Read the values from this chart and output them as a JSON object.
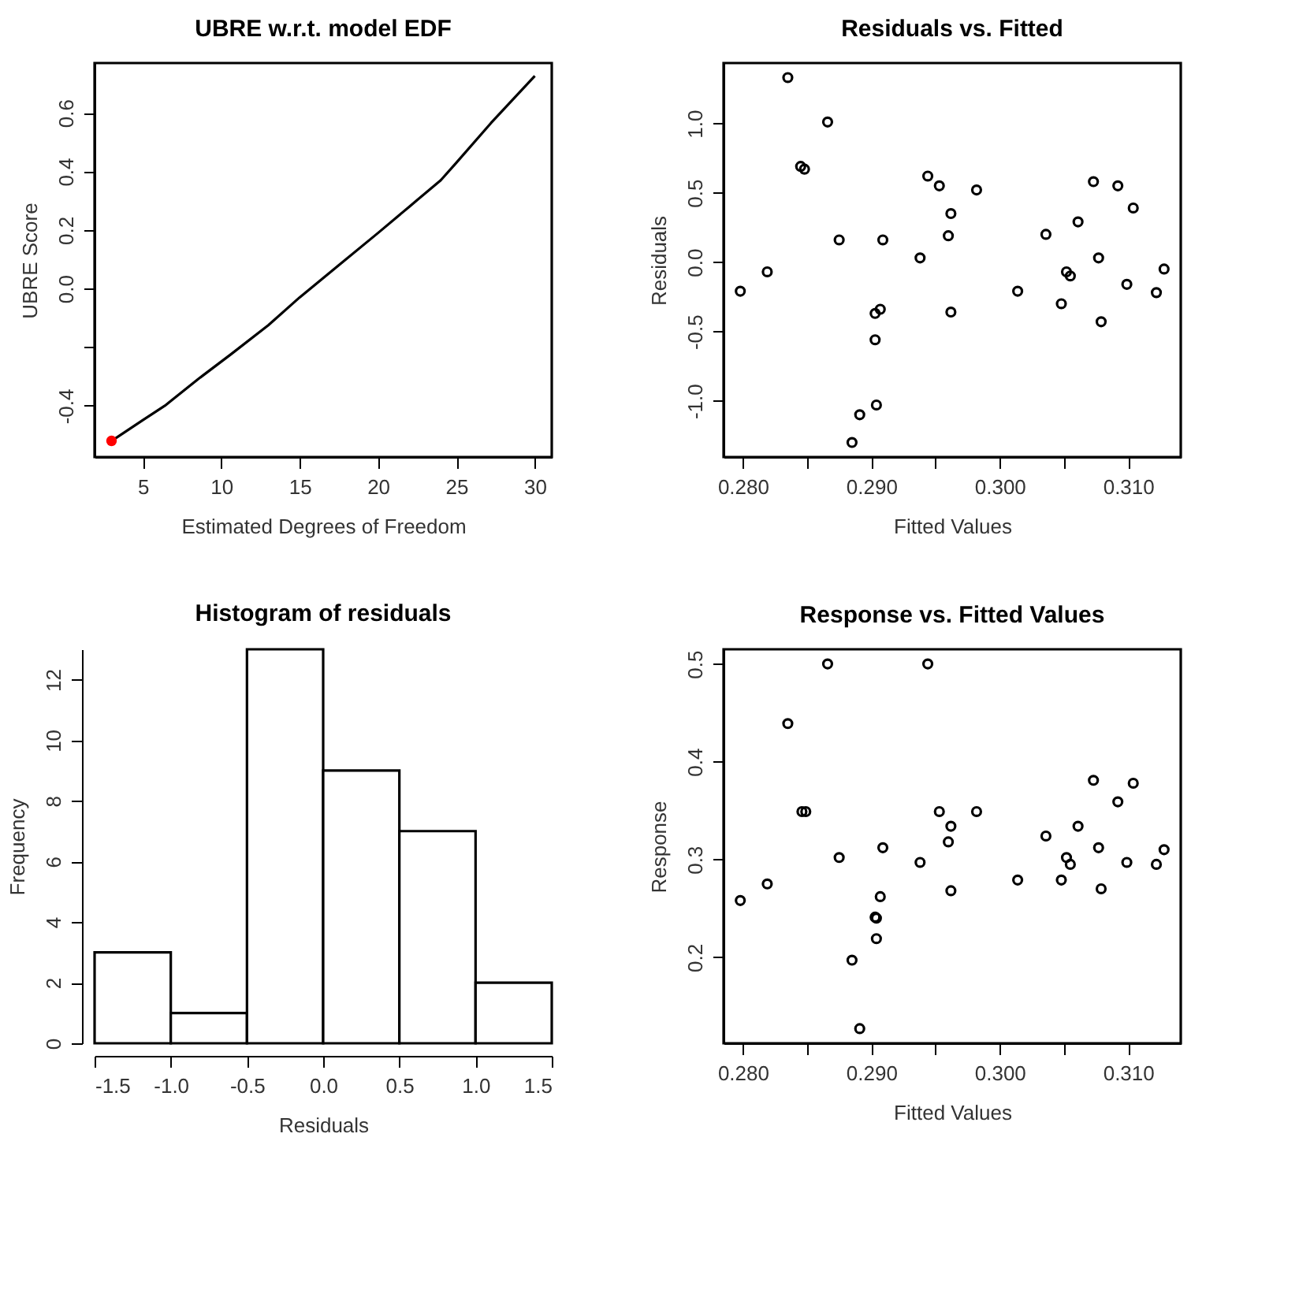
{
  "chart_data": [
    {
      "type": "line",
      "title": "UBRE w.r.t. model EDF",
      "xlabel": "Estimated Degrees of Freedom",
      "ylabel": "UBRE Score",
      "xlim": [
        1.92,
        31.08
      ],
      "ylim": [
        -0.575,
        0.77
      ],
      "xticks": [
        5,
        10,
        15,
        20,
        25,
        30
      ],
      "yticks": [
        {
          "value": -0.4,
          "label": "-0.4"
        },
        {
          "value": -0.2,
          "label": null
        },
        {
          "value": 0.0,
          "label": "0.0"
        },
        {
          "value": 0.2,
          "label": "0.2"
        },
        {
          "value": 0.4,
          "label": "0.4"
        },
        {
          "value": 0.6,
          "label": "0.6"
        }
      ],
      "grid": false,
      "series": [
        {
          "type": "line",
          "color": "#000000",
          "marker": "none",
          "line_style": "solid",
          "x": [
            3,
            5,
            6.4,
            8.5,
            10.6,
            13,
            15,
            17.5,
            20,
            22,
            24,
            25,
            27.2,
            28.5,
            30
          ],
          "values": [
            -0.52,
            -0.449,
            -0.4,
            -0.31,
            -0.225,
            -0.125,
            -0.03,
            0.08,
            0.19,
            0.28,
            0.37,
            0.43,
            0.565,
            0.64,
            0.726
          ]
        },
        {
          "type": "scatter",
          "color": "#ff0000",
          "marker": "circle",
          "x": [
            3
          ],
          "values": [
            -0.52
          ]
        }
      ]
    },
    {
      "type": "scatter",
      "title": "Residuals vs. Fitted",
      "xlabel": "Fitted Values",
      "ylabel": "Residuals",
      "xlim": [
        0.2785,
        0.3141
      ],
      "ylim": [
        -1.405,
        1.435
      ],
      "xticks": [
        {
          "value": 0.28,
          "label": "0.280"
        },
        {
          "value": 0.285,
          "label": null
        },
        {
          "value": 0.29,
          "label": "0.290"
        },
        {
          "value": 0.295,
          "label": null
        },
        {
          "value": 0.3,
          "label": "0.300"
        },
        {
          "value": 0.305,
          "label": null
        },
        {
          "value": 0.31,
          "label": "0.310"
        }
      ],
      "yticks": [
        {
          "value": -1.0,
          "label": "-1.0"
        },
        {
          "value": -0.5,
          "label": "-0.5"
        },
        {
          "value": 0.0,
          "label": "0.0"
        },
        {
          "value": 0.5,
          "label": "0.5"
        },
        {
          "value": 1.0,
          "label": "1.0"
        }
      ],
      "grid": false,
      "marker": "circle",
      "series": [
        {
          "color": "#000000",
          "x": [
            0.2798,
            0.2819,
            0.2835,
            0.2845,
            0.2848,
            0.2866,
            0.2875,
            0.2885,
            0.2891,
            0.2903,
            0.2903,
            0.2904,
            0.2907,
            0.2909,
            0.2938,
            0.2944,
            0.2953,
            0.296,
            0.2962,
            0.2962,
            0.2982,
            0.3014,
            0.3036,
            0.3048,
            0.3052,
            0.3055,
            0.3061,
            0.3073,
            0.3077,
            0.3079,
            0.3092,
            0.3099,
            0.3104,
            0.3122,
            0.3128
          ],
          "values": [
            -0.21,
            -0.07,
            1.33,
            0.69,
            0.67,
            1.01,
            0.16,
            -1.3,
            -1.1,
            -0.37,
            -0.56,
            -1.03,
            -0.34,
            0.16,
            0.03,
            0.62,
            0.55,
            0.19,
            0.35,
            -0.36,
            0.52,
            -0.21,
            0.2,
            -0.3,
            -0.07,
            -0.1,
            0.29,
            0.58,
            0.03,
            -0.43,
            0.55,
            -0.16,
            0.39,
            -0.22,
            -0.05
          ]
        }
      ]
    },
    {
      "type": "histogram",
      "title": "Histogram of residuals",
      "xlabel": "Residuals",
      "ylabel": "Frequency",
      "xlim": [
        -1.5,
        1.5
      ],
      "ylim": [
        0,
        13
      ],
      "xticks": [
        {
          "value": -1.5,
          "label": "-1.5"
        },
        {
          "value": -1.0,
          "label": "-1.0"
        },
        {
          "value": -0.5,
          "label": "-0.5"
        },
        {
          "value": 0.0,
          "label": "0.0"
        },
        {
          "value": 0.5,
          "label": "0.5"
        },
        {
          "value": 1.0,
          "label": "1.0"
        },
        {
          "value": 1.5,
          "label": "1.5"
        }
      ],
      "yticks": [
        0,
        2,
        4,
        6,
        8,
        10,
        12
      ],
      "grid": false,
      "bins": [
        -1.5,
        -1.0,
        -0.5,
        0.0,
        0.5,
        1.0,
        1.5
      ],
      "values": [
        3,
        1,
        13,
        9,
        7,
        2
      ],
      "color": "#ffffff"
    },
    {
      "type": "scatter",
      "title": "Response vs. Fitted Values",
      "xlabel": "Fitted Values",
      "ylabel": "Response",
      "xlim": [
        0.2785,
        0.3141
      ],
      "ylim": [
        0.112,
        0.515
      ],
      "xticks": [
        {
          "value": 0.28,
          "label": "0.280"
        },
        {
          "value": 0.285,
          "label": null
        },
        {
          "value": 0.29,
          "label": "0.290"
        },
        {
          "value": 0.295,
          "label": null
        },
        {
          "value": 0.3,
          "label": "0.300"
        },
        {
          "value": 0.305,
          "label": null
        },
        {
          "value": 0.31,
          "label": "0.310"
        }
      ],
      "yticks": [
        {
          "value": 0.2,
          "label": "0.2"
        },
        {
          "value": 0.3,
          "label": "0.3"
        },
        {
          "value": 0.4,
          "label": "0.4"
        },
        {
          "value": 0.5,
          "label": "0.5"
        }
      ],
      "grid": false,
      "marker": "circle",
      "series": [
        {
          "color": "#000000",
          "x": [
            0.2798,
            0.2819,
            0.2835,
            0.2846,
            0.2849,
            0.2866,
            0.2875,
            0.2885,
            0.2891,
            0.2903,
            0.2904,
            0.2904,
            0.2907,
            0.2909,
            0.2938,
            0.2944,
            0.2953,
            0.296,
            0.2962,
            0.2962,
            0.2982,
            0.3014,
            0.3036,
            0.3048,
            0.3052,
            0.3055,
            0.3061,
            0.3073,
            0.3077,
            0.3079,
            0.3092,
            0.3099,
            0.3104,
            0.3122,
            0.3128
          ],
          "values": [
            0.258,
            0.275,
            0.439,
            0.349,
            0.349,
            0.5,
            0.302,
            0.197,
            0.127,
            0.241,
            0.24,
            0.219,
            0.262,
            0.312,
            0.297,
            0.5,
            0.349,
            0.318,
            0.334,
            0.268,
            0.349,
            0.279,
            0.324,
            0.279,
            0.302,
            0.295,
            0.334,
            0.381,
            0.312,
            0.27,
            0.359,
            0.297,
            0.378,
            0.295,
            0.31
          ]
        }
      ]
    }
  ]
}
